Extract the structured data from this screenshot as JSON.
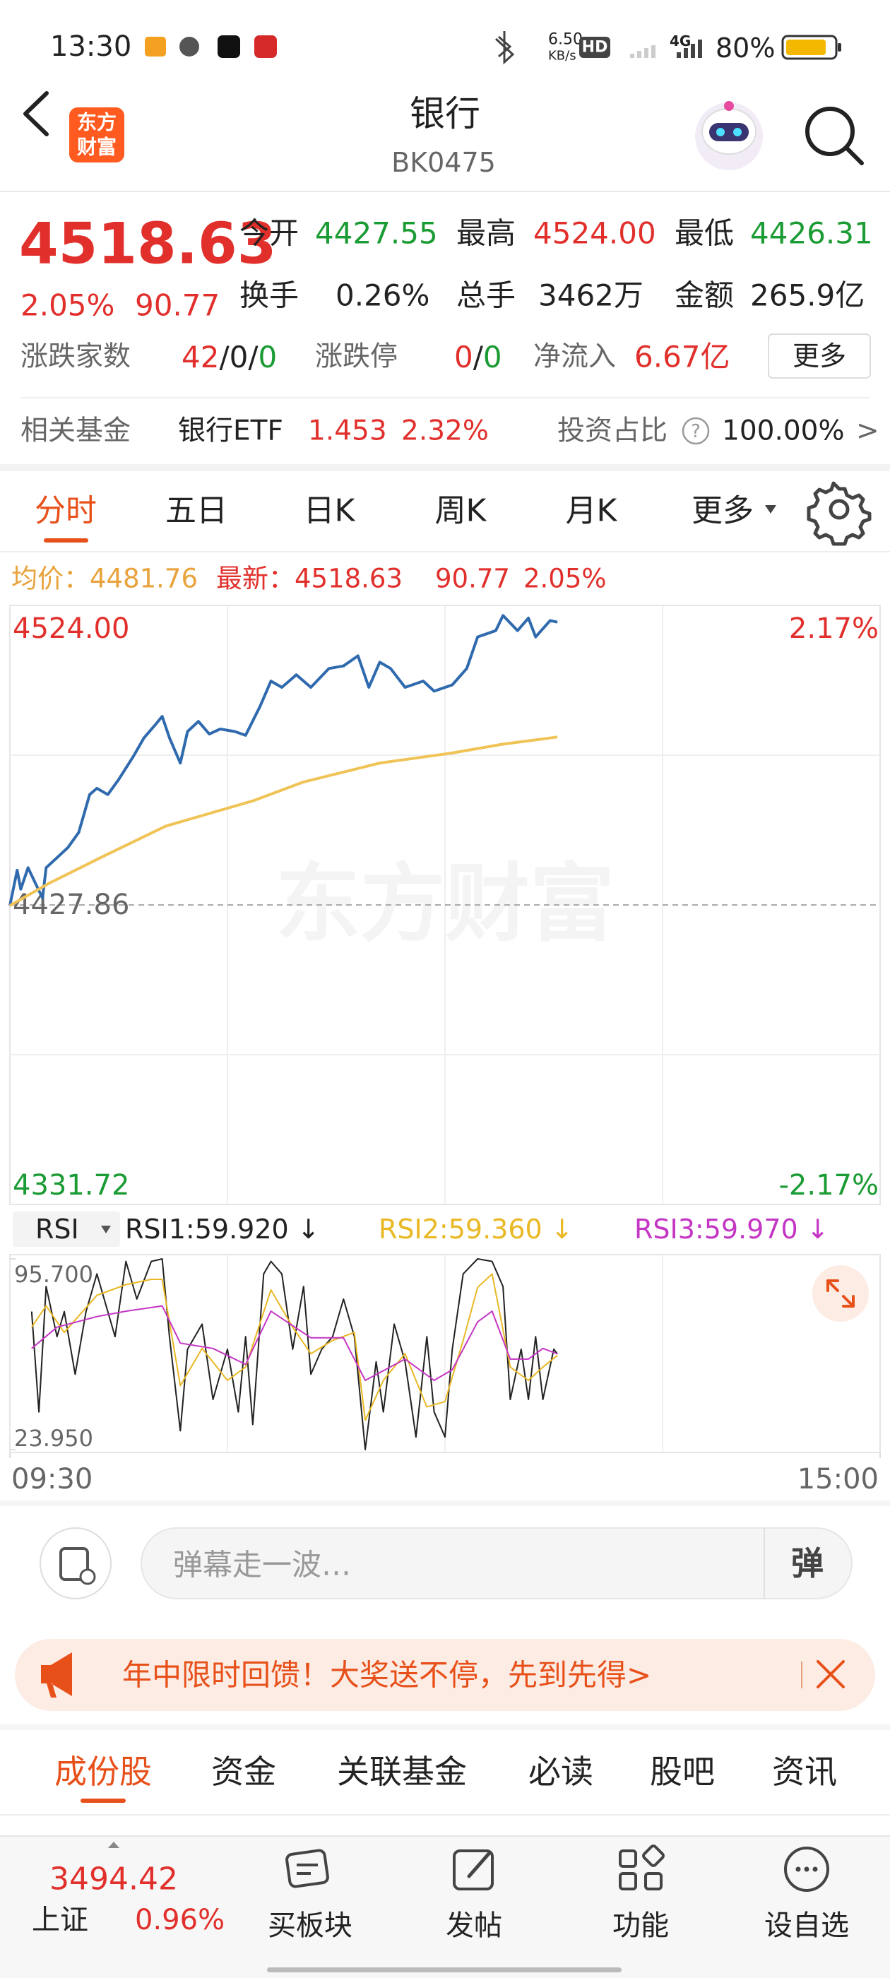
{
  "status_bar": {
    "time": "13:30",
    "speed": "6.50",
    "speed_unit": "KB/s",
    "hd": "HD",
    "network": "4G",
    "battery": "80%"
  },
  "header": {
    "logo": [
      "东方",
      "财富"
    ],
    "title": "银行",
    "code": "BK0475"
  },
  "quote": {
    "price": "4518.63",
    "change_pct": "2.05%",
    "change": "90.77",
    "stats": [
      [
        {
          "label": "今开",
          "value": "4427.55"
        },
        {
          "label": "最高",
          "value": "4524.00"
        },
        {
          "label": "最低",
          "value": "4426.31"
        }
      ],
      [
        {
          "label": "换手",
          "value": "0.26%"
        },
        {
          "label": "总手",
          "value": "3462万"
        },
        {
          "label": "金额",
          "value": "265.9亿"
        }
      ]
    ],
    "breadth": {
      "label": "涨跌家数",
      "up": "42",
      "sep": "/",
      "flat": "0",
      "down": "0"
    },
    "limit": {
      "label": "涨跌停",
      "up": "0",
      "down": "0"
    },
    "inflow": {
      "label": "净流入",
      "value": "6.67亿"
    },
    "more": "更多"
  },
  "fund": {
    "label": "相关基金",
    "name": "银行ETF",
    "price": "1.453",
    "pct": "2.32%",
    "ratio_label": "投资占比",
    "help": "?",
    "ratio": "100.00%",
    "arrow": ">"
  },
  "tabs": [
    "分时",
    "五日",
    "日K",
    "周K",
    "月K",
    "更多"
  ],
  "chart_data": [
    {
      "type": "line",
      "legend": {
        "avg": "均价：4481.76",
        "latest": "最新：4518.63",
        "change": "90.77",
        "pct": "2.05%"
      },
      "watermark": "东方财富",
      "xlim": [
        0,
        240
      ],
      "ylim": [
        4331.72,
        4524
      ],
      "yticks": [
        {
          "value": 4524,
          "label": "4524.00"
        },
        4427.86,
        4331.72
      ],
      "y2lim": [
        -2.17,
        2.17
      ],
      "y2ticks": [
        {
          "value": 2.17,
          "label": "2.17%"
        },
        {
          "value": -2.17,
          "label": "-2.17%"
        }
      ],
      "series": [
        {
          "color": "#2f6aae",
          "x": [
            0,
            2,
            3,
            5,
            7,
            9,
            10,
            13,
            16,
            19,
            22,
            24,
            27,
            30,
            34,
            37,
            40,
            42,
            44,
            47,
            49,
            52,
            55,
            58,
            62,
            65,
            69,
            72,
            75,
            79,
            83,
            88,
            92,
            96,
            99,
            102,
            105,
            109,
            114,
            117,
            122,
            126,
            129,
            134,
            136,
            140,
            143,
            145,
            149,
            151
          ],
          "values": [
            4427.66,
            4438.99,
            4432.92,
            4439.8,
            4434.94,
            4430.09,
            4439.8,
            4443.04,
            4446.28,
            4451.14,
            4463.28,
            4465.3,
            4463.28,
            4468.14,
            4475.42,
            4481.5,
            4485.54,
            4488.38,
            4481.5,
            4473.4,
            4483.52,
            4486.76,
            4482.71,
            4484.33,
            4483.52,
            4482.31,
            4491.62,
            4499.71,
            4497.69,
            4501.74,
            4497.69,
            4503.76,
            4504.57,
            4507.81,
            4497.69,
            4505.78,
            4503.76,
            4497.69,
            4499.71,
            4496.47,
            4498.5,
            4503.76,
            4513.88,
            4515.9,
            4520.76,
            4515.9,
            4519.95,
            4513.88,
            4519.14,
            4518.63
          ]
        },
        {
          "color": "#f0c356",
          "x": [
            0,
            11,
            25,
            43,
            67,
            81,
            102,
            122,
            136,
            151
          ],
          "values": [
            4427.66,
            4434.94,
            4443.04,
            4453.16,
            4461.26,
            4467.33,
            4473.4,
            4476.64,
            4479.47,
            4481.76
          ]
        }
      ]
    },
    {
      "type": "line",
      "indicator": "RSI",
      "xlim": [
        0,
        240
      ],
      "xticks": [
        {
          "value": 0,
          "label": "09:30"
        },
        {
          "value": 240,
          "label": "15:00"
        }
      ],
      "ylim": [
        23.95,
        95.7
      ],
      "yticks": [
        {
          "value": 95.7,
          "label": "95.700"
        },
        {
          "value": 23.95,
          "label": "23.950"
        }
      ],
      "series": [
        {
          "name": "RSI1:59.920 ↓",
          "color": "#222222",
          "x": [
            6,
            8,
            10,
            13,
            15,
            18,
            21,
            24,
            29,
            32,
            35,
            39,
            42,
            44,
            47,
            49,
            53,
            56,
            60,
            63,
            65,
            67,
            70,
            72,
            75,
            78,
            81,
            83,
            86,
            89,
            92,
            95,
            98,
            101,
            103,
            106,
            109,
            112,
            115,
            117,
            120,
            122,
            125,
            129,
            133,
            136,
            138,
            141,
            143,
            145,
            147,
            150,
            151
          ],
          "values": [
            75.87,
            38.11,
            85.31,
            66.43,
            75.87,
            52.27,
            75.87,
            90.03,
            66.43,
            94.75,
            80.59,
            94.75,
            95.7,
            66.43,
            31.03,
            61.71,
            71.15,
            42.83,
            61.71,
            38.11,
            66.43,
            33.39,
            90.03,
            94.75,
            90.03,
            61.71,
            85.31,
            52.27,
            61.71,
            66.43,
            80.59,
            66.43,
            23.95,
            56.99,
            38.11,
            71.15,
            56.99,
            28.67,
            66.43,
            38.11,
            28.67,
            61.71,
            90.03,
            95.7,
            94.75,
            85.31,
            42.83,
            61.71,
            42.83,
            66.43,
            42.83,
            61.71,
            59.92
          ]
        },
        {
          "name": "RSI2:59.360 ↓",
          "color": "#e9b824",
          "x": [
            6,
            10,
            15,
            24,
            32,
            39,
            42,
            47,
            53,
            60,
            65,
            72,
            78,
            83,
            89,
            95,
            98,
            103,
            109,
            115,
            120,
            125,
            129,
            133,
            138,
            143,
            147,
            151
          ],
          "values": [
            70,
            78,
            68,
            82,
            86,
            88,
            88,
            48,
            62,
            50,
            55,
            84,
            70,
            60,
            65,
            68,
            35,
            50,
            60,
            40,
            42,
            65,
            85,
            90,
            55,
            50,
            55,
            59.36
          ]
        },
        {
          "name": "RSI3:59.970 ↓",
          "color": "#c436c4",
          "x": [
            6,
            13,
            24,
            32,
            42,
            47,
            56,
            65,
            72,
            83,
            92,
            98,
            109,
            117,
            122,
            129,
            133,
            138,
            143,
            147,
            151
          ],
          "values": [
            62,
            70,
            74,
            76,
            78,
            64,
            62,
            56,
            76,
            66,
            66,
            50,
            58,
            50,
            54,
            72,
            76,
            58,
            58,
            62,
            59.97
          ]
        }
      ]
    }
  ],
  "comment": {
    "placeholder": "弹幕走一波…",
    "button": "弹"
  },
  "banner": {
    "text": "年中限时回馈！大奖送不停，先到先得>"
  },
  "bottom_tabs": [
    "成份股",
    "资金",
    "关联基金",
    "必读",
    "股吧",
    "资讯"
  ],
  "nav": {
    "index": {
      "value": "3494.42",
      "name": "上证",
      "pct": "0.96%"
    },
    "items": [
      "买板块",
      "发帖",
      "功能",
      "设自选"
    ]
  }
}
